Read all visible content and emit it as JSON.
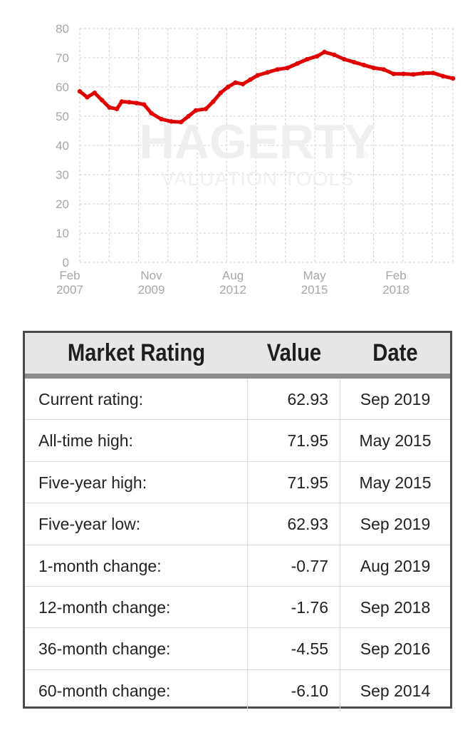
{
  "chart_data": {
    "type": "line",
    "watermark": {
      "brand": "HAGERTY",
      "registered": "®",
      "subtitle": "VALUATION TOOLS"
    },
    "y_ticks": [
      "0",
      "10",
      "20",
      "30",
      "40",
      "50",
      "60",
      "70",
      "80"
    ],
    "ylim": [
      0,
      80
    ],
    "x_ticks": [
      {
        "month": "Feb",
        "year": "2007"
      },
      {
        "month": "Nov",
        "year": "2009"
      },
      {
        "month": "Aug",
        "year": "2012"
      },
      {
        "month": "May",
        "year": "2015"
      },
      {
        "month": "Feb",
        "year": "2018"
      }
    ],
    "xlim": [
      "2007-02",
      "2019-09"
    ],
    "grid": true,
    "line_color": "#e00000",
    "series": [
      {
        "values": [
          {
            "x": "2007-02",
            "y": 58.5
          },
          {
            "x": "2007-05",
            "y": 56.5
          },
          {
            "x": "2007-08",
            "y": 58.0
          },
          {
            "x": "2007-11",
            "y": 55.5
          },
          {
            "x": "2008-02",
            "y": 53.0
          },
          {
            "x": "2008-05",
            "y": 52.5
          },
          {
            "x": "2008-07",
            "y": 55.0
          },
          {
            "x": "2008-10",
            "y": 54.8
          },
          {
            "x": "2009-01",
            "y": 54.5
          },
          {
            "x": "2009-04",
            "y": 54.0
          },
          {
            "x": "2009-07",
            "y": 51.0
          },
          {
            "x": "2009-11",
            "y": 49.0
          },
          {
            "x": "2010-03",
            "y": 48.2
          },
          {
            "x": "2010-07",
            "y": 48.0
          },
          {
            "x": "2010-10",
            "y": 50.0
          },
          {
            "x": "2011-01",
            "y": 52.0
          },
          {
            "x": "2011-05",
            "y": 52.5
          },
          {
            "x": "2011-08",
            "y": 55.0
          },
          {
            "x": "2011-11",
            "y": 58.0
          },
          {
            "x": "2012-02",
            "y": 60.0
          },
          {
            "x": "2012-05",
            "y": 61.5
          },
          {
            "x": "2012-08",
            "y": 61.0
          },
          {
            "x": "2012-11",
            "y": 62.5
          },
          {
            "x": "2013-02",
            "y": 64.0
          },
          {
            "x": "2013-06",
            "y": 65.0
          },
          {
            "x": "2013-10",
            "y": 66.0
          },
          {
            "x": "2014-02",
            "y": 66.5
          },
          {
            "x": "2014-06",
            "y": 68.0
          },
          {
            "x": "2014-10",
            "y": 69.5
          },
          {
            "x": "2015-02",
            "y": 70.5
          },
          {
            "x": "2015-05",
            "y": 71.95
          },
          {
            "x": "2015-09",
            "y": 71.0
          },
          {
            "x": "2016-01",
            "y": 69.5
          },
          {
            "x": "2016-05",
            "y": 68.5
          },
          {
            "x": "2016-09",
            "y": 67.5
          },
          {
            "x": "2017-01",
            "y": 66.5
          },
          {
            "x": "2017-05",
            "y": 66.0
          },
          {
            "x": "2017-09",
            "y": 64.5
          },
          {
            "x": "2018-01",
            "y": 64.5
          },
          {
            "x": "2018-05",
            "y": 64.3
          },
          {
            "x": "2018-09",
            "y": 64.7
          },
          {
            "x": "2019-01",
            "y": 64.8
          },
          {
            "x": "2019-05",
            "y": 63.7
          },
          {
            "x": "2019-09",
            "y": 62.93
          }
        ]
      }
    ]
  },
  "table": {
    "headers": [
      "Market Rating",
      "Value",
      "Date"
    ],
    "rows": [
      {
        "label": "Current rating:",
        "value": "62.93",
        "date": "Sep 2019"
      },
      {
        "label": "All-time high:",
        "value": "71.95",
        "date": "May 2015"
      },
      {
        "label": "Five-year high:",
        "value": "71.95",
        "date": "May 2015"
      },
      {
        "label": "Five-year low:",
        "value": "62.93",
        "date": "Sep 2019"
      },
      {
        "label": "1-month change:",
        "value": "-0.77",
        "date": "Aug 2019"
      },
      {
        "label": "12-month change:",
        "value": "-1.76",
        "date": "Sep 2018"
      },
      {
        "label": "36-month change:",
        "value": "-4.55",
        "date": "Sep 2016"
      },
      {
        "label": "60-month change:",
        "value": "-6.10",
        "date": "Sep 2014"
      }
    ]
  }
}
